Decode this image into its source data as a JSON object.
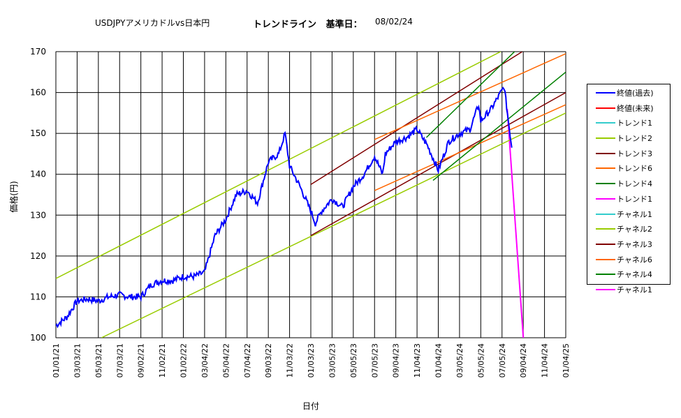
{
  "header": {
    "pair": "USDJPYアメリカドルvs日本円",
    "mode": "トレンドライン",
    "base_label": "基準日：",
    "base_date": "08/02/24"
  },
  "chart_data": {
    "type": "line",
    "title": "USDJPYアメリカドルvs日本円",
    "xlabel": "日付",
    "ylabel": "価格(円)",
    "ylim": [
      100,
      170
    ],
    "yticks": [
      100,
      110,
      120,
      130,
      140,
      150,
      160,
      170
    ],
    "xticks": [
      "01/01/21",
      "03/03/21",
      "05/03/21",
      "07/03/21",
      "09/02/21",
      "11/02/21",
      "01/02/22",
      "03/04/22",
      "05/04/22",
      "07/04/22",
      "09/03/22",
      "11/03/22",
      "01/03/23",
      "03/05/23",
      "05/05/23",
      "07/05/23",
      "09/04/23",
      "11/04/23",
      "01/04/24",
      "03/05/24",
      "05/05/24",
      "07/05/24",
      "09/04/24",
      "11/04/24",
      "01/04/25"
    ],
    "grid": true,
    "legend_position": "right",
    "series": [
      {
        "name": "終値(過去)",
        "color": "#0000ff",
        "x": [
          "01/01/21",
          "02/01/21",
          "03/03/21",
          "04/02/21",
          "05/03/21",
          "06/02/21",
          "07/03/21",
          "08/02/21",
          "09/02/21",
          "10/02/21",
          "11/02/21",
          "12/03/21",
          "01/02/22",
          "02/02/22",
          "03/04/22",
          "04/03/22",
          "05/04/22",
          "06/03/22",
          "07/04/22",
          "08/03/22",
          "09/03/22",
          "10/03/22",
          "10/21/22",
          "11/03/22",
          "12/03/22",
          "01/03/23",
          "01/16/23",
          "02/03/23",
          "03/05/23",
          "04/04/23",
          "05/05/23",
          "06/05/23",
          "07/05/23",
          "07/28/23",
          "08/05/23",
          "09/04/23",
          "10/05/23",
          "11/04/23",
          "12/04/23",
          "01/04/24",
          "02/03/24",
          "03/05/24",
          "04/04/24",
          "04/29/24",
          "05/05/24",
          "06/04/24",
          "07/05/24",
          "07/11/24",
          "08/02/24"
        ],
        "y": [
          103.0,
          105.0,
          109.0,
          109.5,
          109.0,
          110.0,
          110.5,
          110.0,
          110.0,
          113.0,
          114.0,
          114.0,
          115.0,
          115.0,
          116.0,
          125.0,
          129.0,
          135.0,
          136.0,
          133.0,
          143.0,
          145.0,
          150.0,
          142.0,
          137.0,
          131.0,
          128.0,
          131.0,
          134.0,
          132.0,
          137.0,
          140.0,
          144.5,
          140.0,
          145.0,
          148.0,
          149.0,
          151.0,
          147.0,
          141.0,
          148.0,
          150.0,
          151.0,
          157.0,
          153.0,
          156.0,
          160.5,
          161.5,
          146.5
        ]
      },
      {
        "name": "終値(未来)",
        "color": "#ff0000",
        "x": [],
        "y": []
      },
      {
        "name": "トレンド1",
        "color": "#33cccc",
        "x": [],
        "y": []
      },
      {
        "name": "トレンド2",
        "color": "#99cc00",
        "x": [
          "01/01/21",
          "07/01/24"
        ],
        "y": [
          114.5,
          170.0
        ]
      },
      {
        "name": "トレンド3",
        "color": "#800000",
        "x": [
          "01/03/23",
          "09/01/24"
        ],
        "y": [
          137.5,
          170.0
        ]
      },
      {
        "name": "トレンド6",
        "color": "#ff6600",
        "x": [
          "07/05/23",
          "01/04/25"
        ],
        "y": [
          148.5,
          169.5
        ]
      },
      {
        "name": "トレンド4",
        "color": "#008000",
        "x": [
          "12/01/23",
          "08/10/24"
        ],
        "y": [
          149.0,
          170.0
        ]
      },
      {
        "name": "トレンド1",
        "color": "#ff00ff",
        "x": [
          "07/20/24",
          "09/04/24"
        ],
        "y": [
          156.0,
          100.0
        ]
      },
      {
        "name": "チャネル1",
        "color": "#33cccc",
        "x": [],
        "y": []
      },
      {
        "name": "チャネル2",
        "color": "#99cc00",
        "x": [
          "05/12/21",
          "01/04/25"
        ],
        "y": [
          100.0,
          155.0
        ]
      },
      {
        "name": "チャネル3",
        "color": "#800000",
        "x": [
          "01/03/23",
          "01/04/25"
        ],
        "y": [
          125.0,
          160.0
        ]
      },
      {
        "name": "チャネル6",
        "color": "#ff6600",
        "x": [
          "07/05/23",
          "01/04/25"
        ],
        "y": [
          136.0,
          157.0
        ]
      },
      {
        "name": "チャネル4",
        "color": "#008000",
        "x": [
          "12/20/23",
          "01/04/25"
        ],
        "y": [
          138.5,
          165.0
        ]
      },
      {
        "name": "チャネル1",
        "color": "#ff00ff",
        "x": [],
        "y": []
      }
    ]
  }
}
